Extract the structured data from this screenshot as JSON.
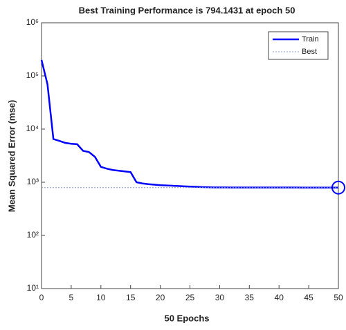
{
  "chart_data": {
    "type": "line",
    "title": "Best Training Performance is 794.1431 at epoch 50",
    "xlabel": "50 Epochs",
    "ylabel": "Mean Squared Error  (mse)",
    "x": [
      0,
      1,
      2,
      3,
      4,
      5,
      6,
      7,
      8,
      9,
      10,
      11,
      12,
      13,
      14,
      15,
      16,
      17,
      18,
      19,
      20,
      21,
      22,
      23,
      24,
      25,
      26,
      27,
      28,
      29,
      30,
      31,
      32,
      33,
      34,
      35,
      36,
      37,
      38,
      39,
      40,
      41,
      42,
      43,
      44,
      45,
      46,
      47,
      48,
      49,
      50
    ],
    "series": [
      {
        "name": "Train",
        "color": "#0000ff",
        "values": [
          200000,
          70000,
          6500,
          6000,
          5500,
          5300,
          5200,
          3900,
          3700,
          3000,
          1950,
          1800,
          1700,
          1650,
          1600,
          1550,
          1000,
          950,
          920,
          900,
          880,
          870,
          860,
          850,
          840,
          830,
          820,
          810,
          805,
          800,
          799,
          798,
          797,
          797,
          796,
          796,
          796,
          795,
          795,
          795,
          795,
          795,
          795,
          795,
          794.5,
          794.5,
          794.5,
          794.5,
          794.2,
          794.2,
          794.1431
        ]
      },
      {
        "name": "Best",
        "color": "#8899cc",
        "value": 794.1431,
        "epoch": 50
      }
    ],
    "xlim": [
      0,
      50
    ],
    "xticks": [
      0,
      5,
      10,
      15,
      20,
      25,
      30,
      35,
      40,
      45,
      50
    ],
    "ylim": [
      10,
      1000000
    ],
    "yticks": [
      {
        "value": 10,
        "label": "10¹"
      },
      {
        "value": 100,
        "label": "10²"
      },
      {
        "value": 1000,
        "label": "10³"
      },
      {
        "value": 10000,
        "label": "10⁴"
      },
      {
        "value": 100000,
        "label": "10⁵"
      },
      {
        "value": 1000000,
        "label": "10⁶"
      }
    ],
    "log_y": true,
    "legend": "upper right"
  }
}
